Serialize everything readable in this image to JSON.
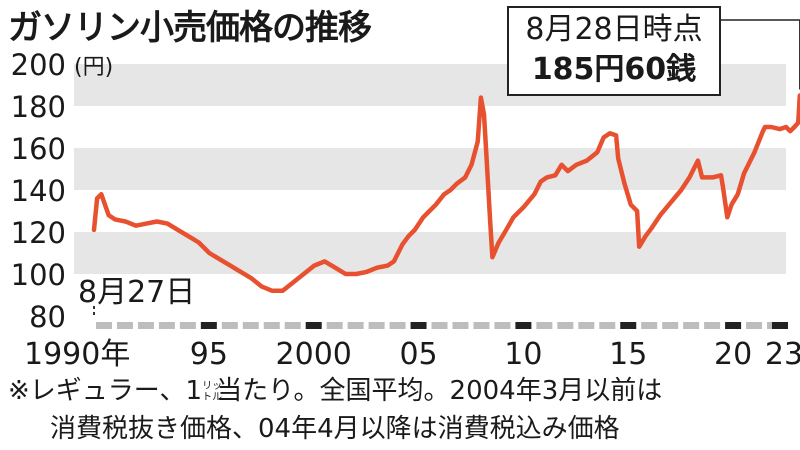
{
  "title": "ガソリン小売価格の推移",
  "callout": {
    "date": "8月28日時点",
    "price": "185円60銭"
  },
  "start_label": "8月27日",
  "note": {
    "line1_a": "※レギュラー、1",
    "unit_top": "リッ",
    "unit_bottom": "トル",
    "line1_b": "当たり。全国平均。2004年3月以前は",
    "line2": "消費税抜き価格、04年4月以降は消費税込み価格"
  },
  "colors": {
    "line": "#e8512f",
    "band": "#e6e6e6",
    "axis_dark": "#222222",
    "axis_light": "#bdbdbd"
  },
  "chart_data": {
    "type": "line",
    "title": "ガソリン小売価格の推移",
    "ylabel": "(円)",
    "xlim": [
      1990,
      2023
    ],
    "ylim": [
      80,
      200
    ],
    "y_ticks": [
      80,
      100,
      120,
      140,
      160,
      180,
      200
    ],
    "x_ticks": [
      {
        "value": 1990,
        "label": "1990年"
      },
      {
        "value": 1995,
        "label": "95"
      },
      {
        "value": 2000,
        "label": "2000"
      },
      {
        "value": 2005,
        "label": "05"
      },
      {
        "value": 2010,
        "label": "10"
      },
      {
        "value": 2015,
        "label": "15"
      },
      {
        "value": 2020,
        "label": "20"
      },
      {
        "value": 2023,
        "label": "23"
      }
    ],
    "grid_bands": true,
    "x": [
      1990.0,
      1990.15,
      1990.35,
      1990.7,
      1991.0,
      1991.5,
      1992.0,
      1992.5,
      1993.0,
      1993.5,
      1994.0,
      1994.5,
      1995.0,
      1995.5,
      1996.0,
      1996.5,
      1997.0,
      1997.5,
      1998.0,
      1998.5,
      1999.0,
      1999.5,
      2000.0,
      2000.5,
      2001.0,
      2001.5,
      2002.0,
      2002.5,
      2003.0,
      2003.5,
      2004.0,
      2004.3,
      2004.7,
      2005.0,
      2005.3,
      2005.7,
      2006.0,
      2006.3,
      2006.7,
      2007.0,
      2007.3,
      2007.7,
      2008.0,
      2008.3,
      2008.45,
      2008.6,
      2008.75,
      2008.9,
      2009.0,
      2009.3,
      2009.6,
      2010.0,
      2010.5,
      2011.0,
      2011.3,
      2011.6,
      2012.0,
      2012.3,
      2012.6,
      2013.0,
      2013.5,
      2014.0,
      2014.3,
      2014.6,
      2014.9,
      2015.0,
      2015.3,
      2015.6,
      2015.9,
      2016.0,
      2016.3,
      2016.6,
      2017.0,
      2017.5,
      2018.0,
      2018.4,
      2018.8,
      2019.0,
      2019.5,
      2019.9,
      2020.0,
      2020.2,
      2020.4,
      2020.7,
      2021.0,
      2021.5,
      2021.9,
      2022.0,
      2022.3,
      2022.7,
      2023.0,
      2023.2,
      2023.4,
      2023.58,
      2023.66
    ],
    "values": [
      121,
      136,
      138,
      128,
      126,
      125,
      123,
      124,
      125,
      124,
      121,
      118,
      115,
      110,
      107,
      104,
      101,
      98,
      94,
      92,
      92,
      96,
      100,
      104,
      106,
      103,
      100,
      100,
      101,
      103,
      104,
      106,
      114,
      118,
      121,
      127,
      130,
      133,
      138,
      140,
      143,
      146,
      152,
      163,
      184,
      176,
      150,
      124,
      108,
      115,
      120,
      127,
      132,
      138,
      144,
      146,
      147,
      152,
      149,
      152,
      154,
      158,
      165,
      167,
      166,
      155,
      143,
      133,
      130,
      113,
      118,
      122,
      128,
      134,
      140,
      146,
      154,
      146,
      146,
      147,
      141,
      127,
      133,
      138,
      148,
      158,
      168,
      170,
      170,
      169,
      170,
      168,
      170,
      172,
      185
    ]
  }
}
